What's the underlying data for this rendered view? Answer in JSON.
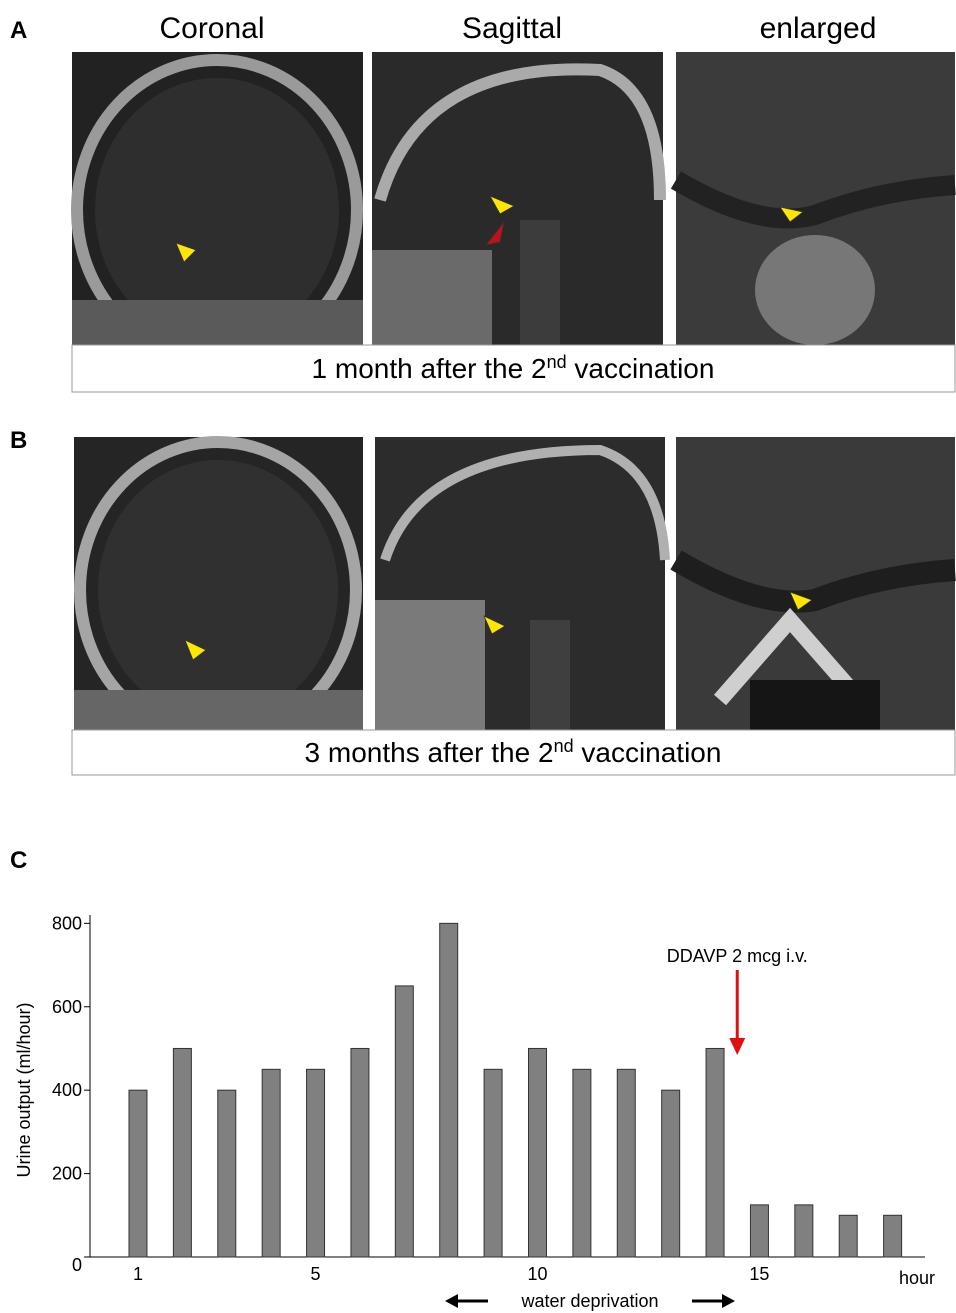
{
  "panels": [
    {
      "label": "A",
      "headers": [
        "Coronal",
        "Sagittal",
        "enlarged"
      ],
      "caption": {
        "text": "1 month after the 2",
        "sup": "nd",
        "rest": " vaccination"
      }
    },
    {
      "label": "B",
      "caption": {
        "text": "3 months after the 2",
        "sup": "nd",
        "rest": " vaccination"
      }
    }
  ],
  "chart_data": {
    "type": "bar",
    "panel_label": "C",
    "x": [
      1,
      2,
      3,
      4,
      5,
      6,
      7,
      8,
      9,
      10,
      11,
      12,
      13,
      14,
      15,
      16,
      17,
      18
    ],
    "values": [
      400,
      500,
      400,
      450,
      450,
      500,
      650,
      800,
      450,
      500,
      450,
      450,
      400,
      500,
      125,
      125,
      100,
      100
    ],
    "color": "#808080",
    "xlim": [
      0,
      19
    ],
    "xticks": [
      1,
      5,
      10,
      15
    ],
    "xlabel": "hour",
    "ylim": [
      0,
      820
    ],
    "yticks": [
      0,
      200,
      400,
      600,
      800
    ],
    "ylabel": "Urine output (ml/hour)",
    "annotations": [
      {
        "text": "DDAVP 2 mcg i.v.",
        "x": 14.5
      },
      {
        "text": "water deprivation"
      }
    ]
  }
}
